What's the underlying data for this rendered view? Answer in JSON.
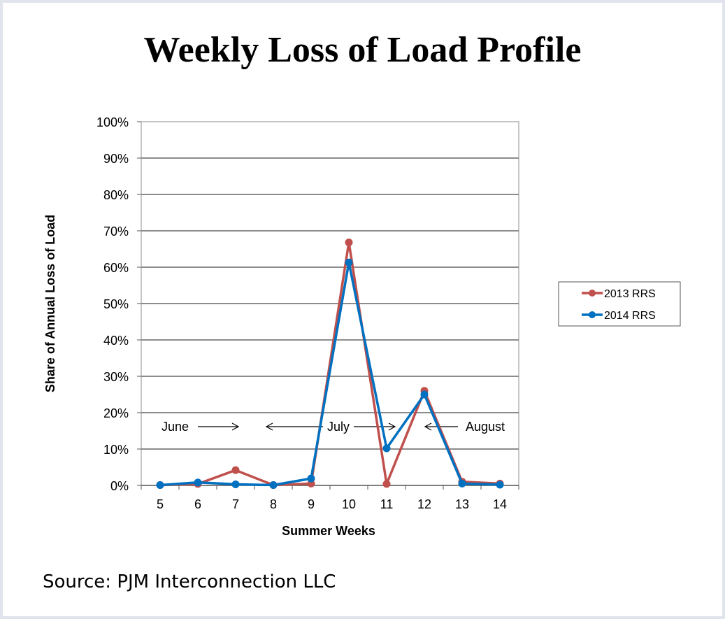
{
  "title": "Weekly Loss of Load Profile",
  "source": "Source: PJM Interconnection LLC",
  "chart_data": {
    "type": "line",
    "title": "Weekly Loss of Load Profile",
    "xlabel": "Summer Weeks",
    "ylabel": "Share of Annual Loss of Load",
    "x": [
      "5",
      "6",
      "7",
      "8",
      "9",
      "10",
      "11",
      "12",
      "13",
      "14"
    ],
    "ylim": [
      0,
      100
    ],
    "yticks": [
      0,
      10,
      20,
      30,
      40,
      50,
      60,
      70,
      80,
      90,
      100
    ],
    "ytick_labels": [
      "0%",
      "10%",
      "20%",
      "30%",
      "40%",
      "50%",
      "60%",
      "70%",
      "80%",
      "90%",
      "100%"
    ],
    "grid": true,
    "legend_position": "right",
    "series": [
      {
        "name": "2013 RRS",
        "color": "#c0504d",
        "values": [
          0.1,
          0.4,
          4.2,
          0.1,
          0.5,
          66.8,
          0.4,
          26.0,
          1.0,
          0.5
        ]
      },
      {
        "name": "2014 RRS",
        "color": "#0070c0",
        "values": [
          0.1,
          0.8,
          0.3,
          0.1,
          1.9,
          61.3,
          10.2,
          25.0,
          0.5,
          0.2
        ]
      }
    ],
    "annotations": [
      {
        "text": "June",
        "arrow": "right"
      },
      {
        "text": "July",
        "arrow": "both"
      },
      {
        "text": "August",
        "arrow": "left"
      }
    ]
  }
}
